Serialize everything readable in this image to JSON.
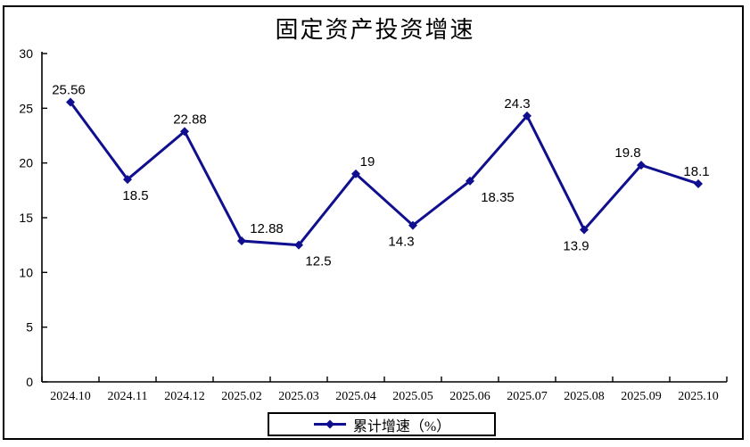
{
  "page": {
    "title": "固定资产投资增速"
  },
  "chart_data": {
    "type": "line",
    "title": "固定资产投资增速",
    "categories": [
      "2024.10",
      "2024.11",
      "2024.12",
      "2025.02",
      "2025.03",
      "2025.04",
      "2025.05",
      "2025.06",
      "2025.07",
      "2025.08",
      "2025.09",
      "2025.10"
    ],
    "series": [
      {
        "name": "累计增速（%）",
        "values": [
          25.56,
          18.5,
          22.88,
          12.88,
          12.5,
          19,
          14.3,
          18.35,
          24.3,
          13.9,
          19.8,
          18.1
        ],
        "color": "#0f0f8f",
        "marker": "diamond"
      }
    ],
    "xlabel": "",
    "ylabel": "",
    "ylim": [
      0,
      30
    ],
    "yticks": [
      0,
      5,
      10,
      15,
      20,
      25,
      30
    ],
    "grid": false,
    "legend_position": "bottom",
    "axis_color": "#000000",
    "data_label_layout": [
      {
        "dx": -2,
        "pos": "above"
      },
      {
        "dx": 9,
        "pos": "below"
      },
      {
        "dx": 6,
        "pos": "above"
      },
      {
        "dx": 28,
        "pos": "above"
      },
      {
        "dx": 22,
        "pos": "below"
      },
      {
        "dx": 13,
        "pos": "above"
      },
      {
        "dx": -13,
        "pos": "below"
      },
      {
        "dx": 31,
        "pos": "below"
      },
      {
        "dx": -11,
        "pos": "above"
      },
      {
        "dx": -9,
        "pos": "below"
      },
      {
        "dx": -15,
        "pos": "above"
      },
      {
        "dx": -2,
        "pos": "above"
      }
    ]
  }
}
